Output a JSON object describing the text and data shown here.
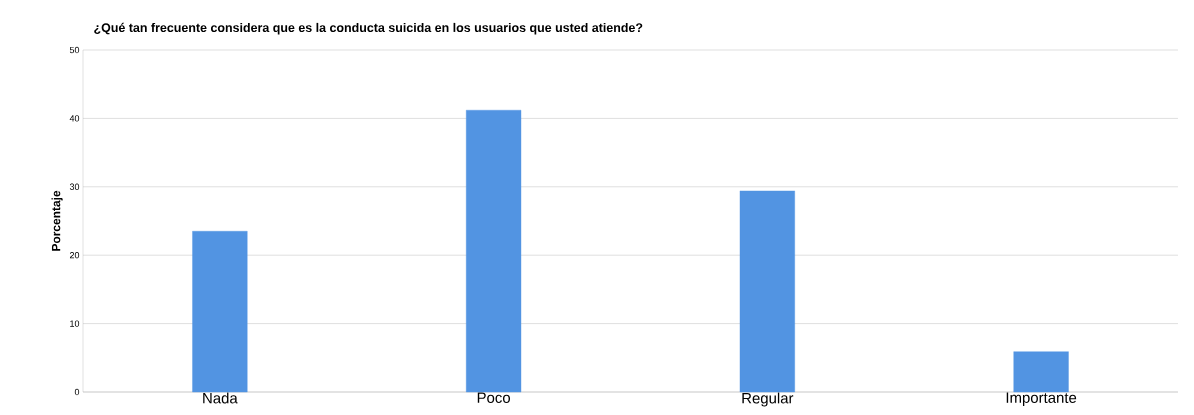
{
  "chart_data": {
    "type": "bar",
    "title": "¿Qué tan frecuente considera que es la conducta suicida en los usuarios que usted atiende?",
    "ylabel": "Porcentaje",
    "categories": [
      "Nada",
      "Poco",
      "Regular",
      "Importante"
    ],
    "values": [
      23.5,
      41.2,
      29.4,
      5.9
    ],
    "color": "#5294e2",
    "ylim": [
      0,
      50
    ],
    "yticks": [
      0,
      10,
      20,
      30,
      40,
      50
    ],
    "grid": "y"
  }
}
